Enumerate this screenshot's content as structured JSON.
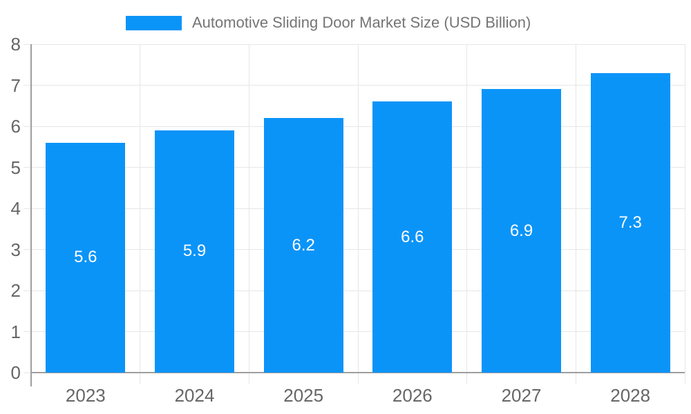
{
  "chart_data": {
    "type": "bar",
    "title": "Automotive Sliding Door Market Size (USD Billion)",
    "categories": [
      "2023",
      "2024",
      "2025",
      "2026",
      "2027",
      "2028"
    ],
    "values": [
      5.6,
      5.9,
      6.2,
      6.6,
      6.9,
      7.3
    ],
    "value_labels": [
      "5.6",
      "5.9",
      "6.2",
      "6.6",
      "6.9",
      "7.3"
    ],
    "xlabel": "",
    "ylabel": "",
    "ylim": [
      0,
      8
    ],
    "yticks": [
      0,
      1,
      2,
      3,
      4,
      5,
      6,
      7,
      8
    ],
    "grid": true,
    "legend_position": "top",
    "colors": {
      "bar": "#0b94f8",
      "bar_value_text": "#ffffff",
      "legend_text": "#757575",
      "axis_text": "#666666",
      "gridline": "#e6e6e6",
      "axis_line": "#9e9e9e",
      "background": "#ffffff"
    }
  }
}
